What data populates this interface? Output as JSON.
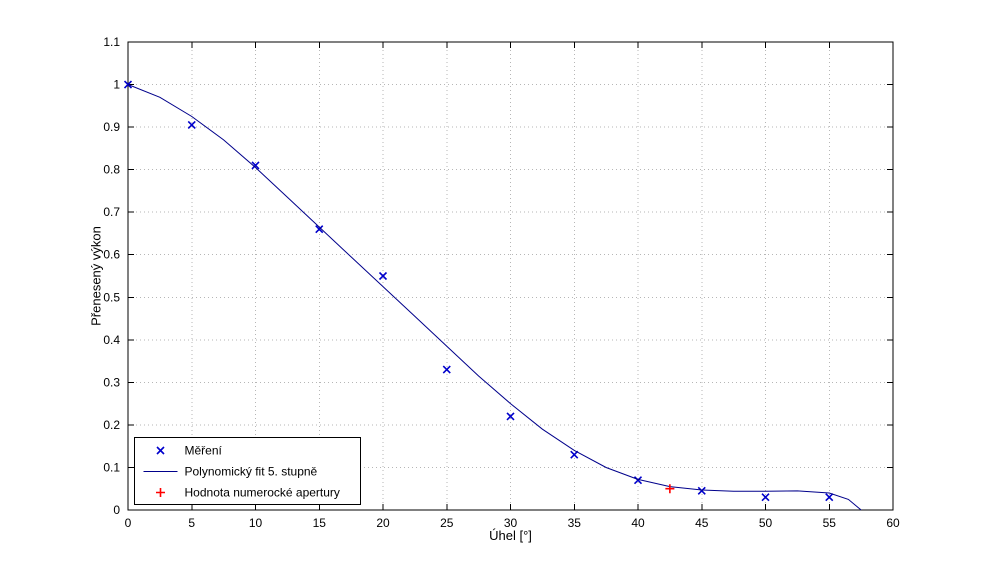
{
  "chart_data": {
    "type": "scatter",
    "title": "",
    "xlabel": "Úhel [°]",
    "ylabel": "Přenesený výkon",
    "xlim": [
      0,
      60
    ],
    "ylim": [
      0,
      1.1
    ],
    "xticks": [
      0,
      5,
      10,
      15,
      20,
      25,
      30,
      35,
      40,
      45,
      50,
      55,
      60
    ],
    "xtick_labels": [
      "0",
      "5",
      "10",
      "15",
      "20",
      "25",
      "30",
      "35",
      "40",
      "45",
      "50",
      "55",
      "60"
    ],
    "yticks": [
      0,
      0.1,
      0.2,
      0.3,
      0.4,
      0.5,
      0.6,
      0.7,
      0.8,
      0.9,
      1.0,
      1.1
    ],
    "ytick_labels": [
      "0",
      "0.1",
      "0.2",
      "0.3",
      "0.4",
      "0.5",
      "0.6",
      "0.7",
      "0.8",
      "0.9",
      "1",
      "1.1"
    ],
    "grid": true,
    "legend_position": "bottom-left",
    "colors": {
      "grid": "#b6b6b6",
      "axis": "#000000",
      "background": "#ffffff"
    },
    "series": [
      {
        "name": "Měření",
        "type": "scatter",
        "marker": "x",
        "color": "#0000cc",
        "x": [
          0,
          5,
          10,
          15,
          20,
          25,
          30,
          35,
          40,
          45,
          50,
          55
        ],
        "y": [
          1.0,
          0.905,
          0.81,
          0.66,
          0.55,
          0.33,
          0.22,
          0.13,
          0.07,
          0.045,
          0.03,
          0.03
        ]
      },
      {
        "name": "Polynomický fit 5. stupně",
        "type": "line",
        "color": "#00008b",
        "x": [
          0,
          2.5,
          5,
          7.5,
          10,
          12.5,
          15,
          17.5,
          20,
          22.5,
          25,
          27.5,
          30,
          32.5,
          35,
          37.5,
          40,
          42.5,
          45,
          47.5,
          50,
          52.5,
          55,
          56.5,
          57.5
        ],
        "y": [
          1.0,
          0.97,
          0.925,
          0.87,
          0.805,
          0.735,
          0.665,
          0.595,
          0.525,
          0.455,
          0.385,
          0.315,
          0.25,
          0.19,
          0.14,
          0.1,
          0.072,
          0.055,
          0.047,
          0.044,
          0.044,
          0.045,
          0.04,
          0.025,
          0.0
        ]
      },
      {
        "name": "Hodnota numerocké apertury",
        "type": "scatter",
        "marker": "+",
        "color": "#ff0000",
        "x": [
          42.5
        ],
        "y": [
          0.05
        ]
      }
    ]
  }
}
